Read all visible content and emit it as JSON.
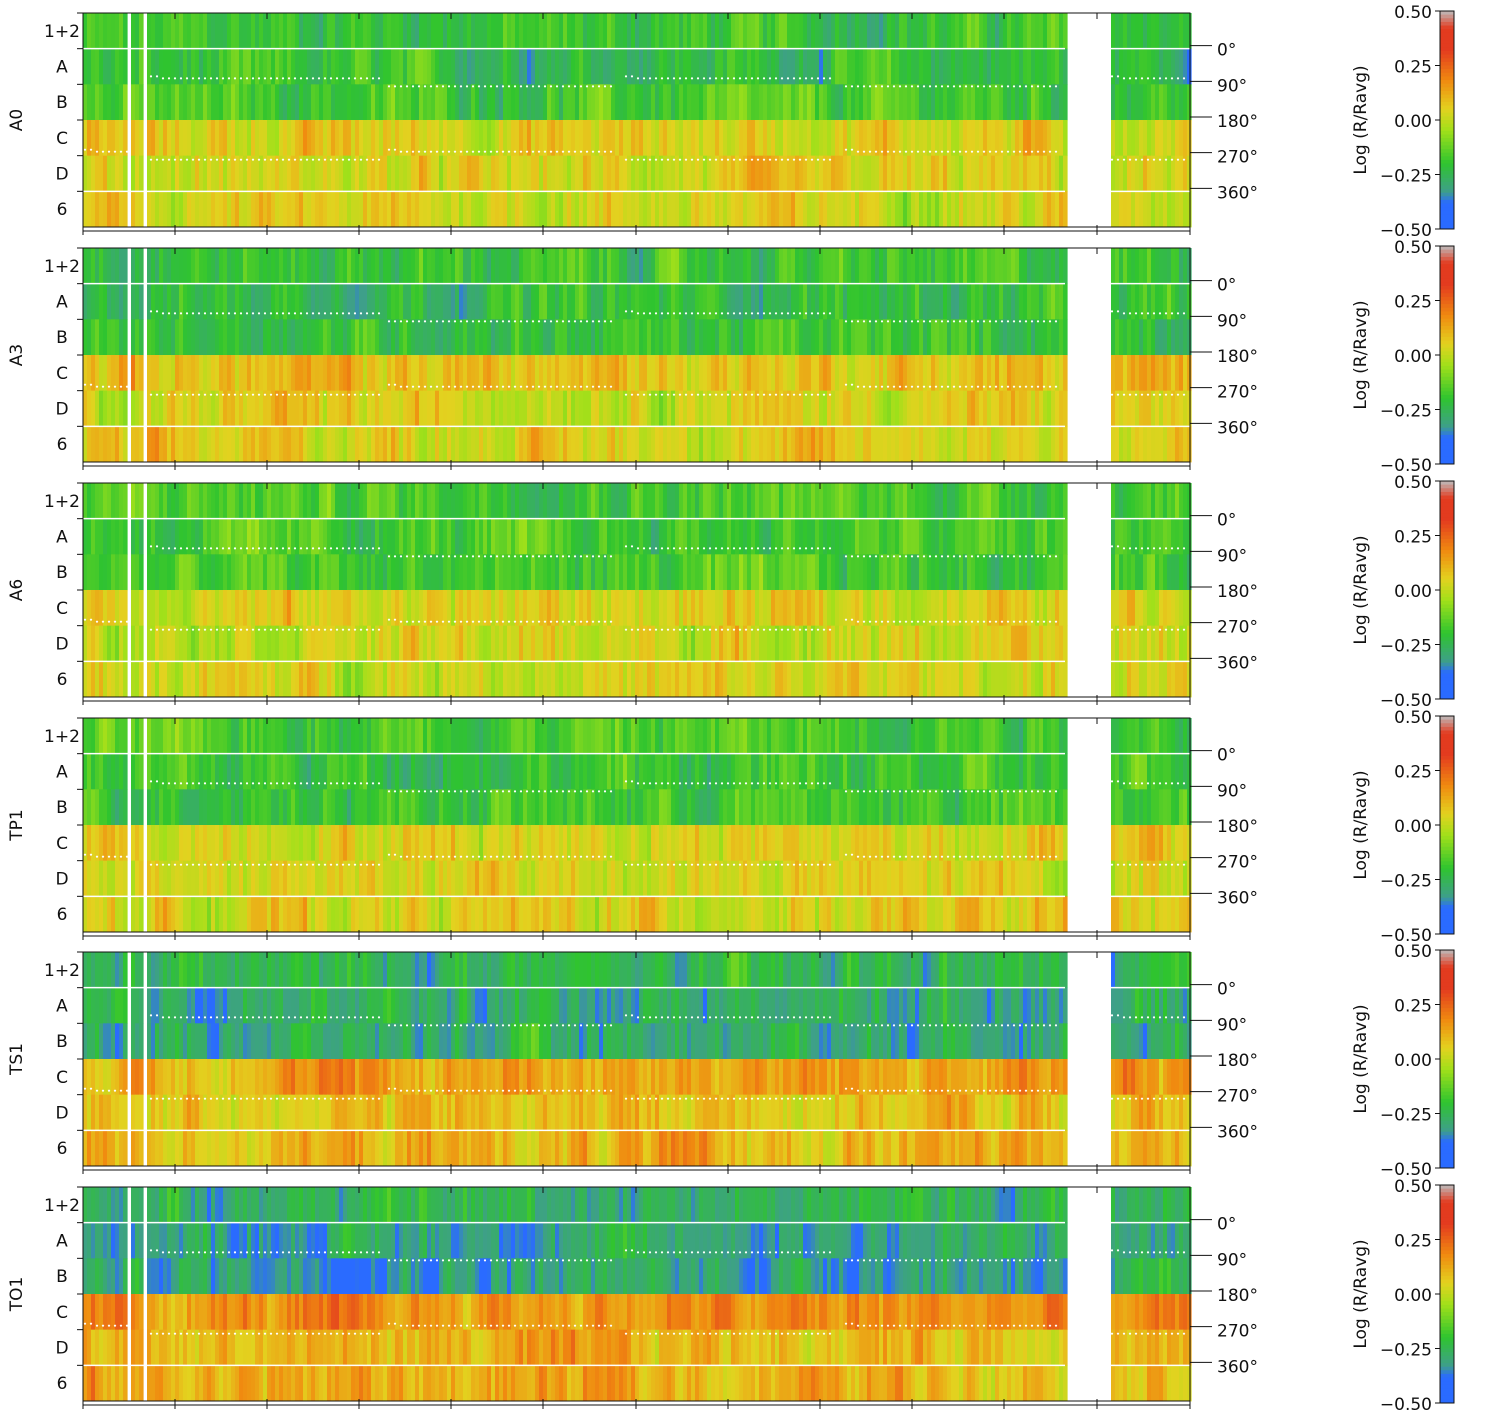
{
  "row_labels": [
    "1+2",
    "A",
    "B",
    "C",
    "D",
    "6"
  ],
  "angle_labels": [
    "0°",
    "90°",
    "180°",
    "270°",
    "360°"
  ],
  "colorbar_label": "Log (R/Ravg)",
  "colorbar_ticks": [
    "0.50",
    "0.25",
    "0.00",
    "−0.25",
    "−0.50"
  ],
  "colors": {
    "blue": "#2a6bff",
    "teal": "#3e9f8a",
    "green": "#2fc42f",
    "lime": "#a0e01a",
    "yellow": "#e3d21f",
    "orange": "#f08a10",
    "red": "#e33b1f",
    "gray": "#bdbdbd"
  },
  "chart_data": [
    {
      "type": "heatmap",
      "panel": "A0",
      "rows": [
        "1+2",
        "A",
        "B",
        "C",
        "D",
        "6"
      ],
      "zlabel": "Log (R/Ravg)",
      "zlim": [
        -0.5,
        0.5
      ],
      "row_mean": [
        -0.2,
        -0.22,
        -0.18,
        0.05,
        0.02,
        0.03
      ]
    },
    {
      "type": "heatmap",
      "panel": "A3",
      "rows": [
        "1+2",
        "A",
        "B",
        "C",
        "D",
        "6"
      ],
      "zlabel": "Log (R/Ravg)",
      "zlim": [
        -0.5,
        0.5
      ],
      "row_mean": [
        -0.2,
        -0.22,
        -0.2,
        0.08,
        0.04,
        0.05
      ]
    },
    {
      "type": "heatmap",
      "panel": "A6",
      "rows": [
        "1+2",
        "A",
        "B",
        "C",
        "D",
        "6"
      ],
      "zlabel": "Log (R/Ravg)",
      "zlim": [
        -0.5,
        0.5
      ],
      "row_mean": [
        -0.16,
        -0.18,
        -0.18,
        0.04,
        0.02,
        0.03
      ]
    },
    {
      "type": "heatmap",
      "panel": "TP1",
      "rows": [
        "1+2",
        "A",
        "B",
        "C",
        "D",
        "6"
      ],
      "zlabel": "Log (R/Ravg)",
      "zlim": [
        -0.5,
        0.5
      ],
      "row_mean": [
        -0.16,
        -0.2,
        -0.18,
        0.05,
        0.03,
        0.04
      ]
    },
    {
      "type": "heatmap",
      "panel": "TS1",
      "rows": [
        "1+2",
        "A",
        "B",
        "C",
        "D",
        "6"
      ],
      "zlabel": "Log (R/Ravg)",
      "zlim": [
        -0.5,
        0.5
      ],
      "row_mean": [
        -0.26,
        -0.28,
        -0.28,
        0.14,
        0.08,
        0.1
      ]
    },
    {
      "type": "heatmap",
      "panel": "TO1",
      "rows": [
        "1+2",
        "A",
        "B",
        "C",
        "D",
        "6"
      ],
      "zlabel": "Log (R/Ravg)",
      "zlim": [
        -0.5,
        0.5
      ],
      "row_mean": [
        -0.26,
        -0.3,
        -0.3,
        0.16,
        0.1,
        0.12
      ]
    }
  ]
}
